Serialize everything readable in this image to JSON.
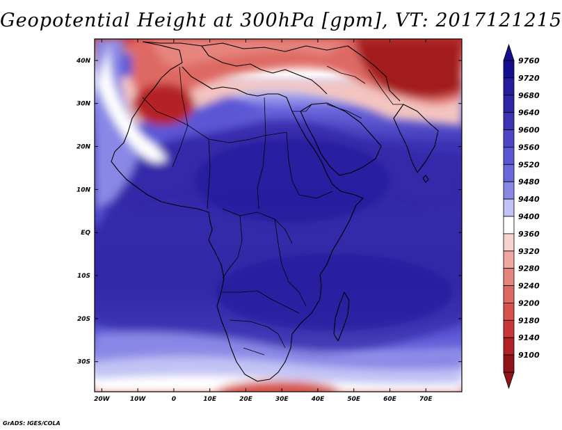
{
  "title": "Geopotential Height at 300hPa [gpm], VT: 2017121215",
  "credit": "GrADS: IGES/COLA",
  "map": {
    "lon_ticks": [
      "20W",
      "10W",
      "0",
      "10E",
      "20E",
      "30E",
      "40E",
      "50E",
      "60E",
      "70E"
    ],
    "lat_ticks": [
      "40N",
      "30N",
      "20N",
      "10N",
      "EQ",
      "10S",
      "20S",
      "30S"
    ]
  },
  "colorbar": {
    "labels": [
      "9760",
      "9720",
      "9680",
      "9640",
      "9600",
      "9560",
      "9520",
      "9480",
      "9440",
      "9400",
      "9360",
      "9320",
      "9280",
      "9240",
      "9200",
      "9180",
      "9140",
      "9100"
    ],
    "colors": [
      "#150e8e",
      "#241c9c",
      "#2e25a6",
      "#3c33b4",
      "#4d45c6",
      "#5c56d4",
      "#6b67dc",
      "#8a88e6",
      "#c2c2f4",
      "#ffffff",
      "#f7d3d0",
      "#eea7a1",
      "#e6857e",
      "#de6963",
      "#d6524b",
      "#c8383a",
      "#b22125",
      "#8f1518"
    ],
    "top_arrow_color": "#150e8e",
    "bottom_arrow_color": "#8f1518"
  },
  "chart_data": {
    "type": "heatmap",
    "title": "Geopotential Height at 300hPa [gpm], VT: 2017121215",
    "variable": "Geopotential Height",
    "level": "300hPa",
    "units": "gpm",
    "valid_time": "2017121215",
    "lon_range": [
      -22,
      80
    ],
    "lat_range": [
      -37,
      45
    ],
    "legend_levels": [
      9100,
      9140,
      9180,
      9200,
      9240,
      9280,
      9320,
      9360,
      9400,
      9440,
      9480,
      9520,
      9560,
      9600,
      9640,
      9680,
      9720,
      9760
    ]
  }
}
